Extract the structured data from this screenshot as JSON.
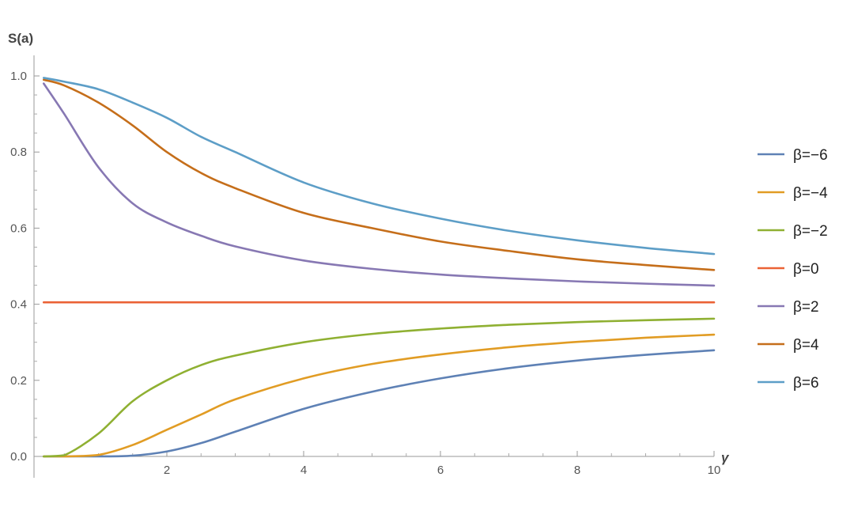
{
  "chart_data": {
    "type": "line",
    "title": "",
    "xlabel": "γ",
    "ylabel": "S(a)",
    "xlim": [
      0,
      10
    ],
    "ylim": [
      0,
      1
    ],
    "xticks": [
      2,
      4,
      6,
      8,
      10
    ],
    "xtick_labels": [
      "2",
      "4",
      "6",
      "8",
      "10"
    ],
    "yticks": [
      0.0,
      0.2,
      0.4,
      0.6,
      0.8,
      1.0
    ],
    "ytick_labels": [
      "0.0",
      "0.2",
      "0.4",
      "0.6",
      "0.8",
      "1.0"
    ],
    "grid": false,
    "legend_position": "right",
    "x": [
      0.2,
      0.5,
      1,
      1.5,
      2,
      2.5,
      3,
      4,
      5,
      6,
      7,
      8,
      9,
      10
    ],
    "series": [
      {
        "name": "β=−6",
        "color": "#5e81b5",
        "values": [
          0.0,
          0.0,
          0.0,
          0.002,
          0.013,
          0.035,
          0.065,
          0.125,
          0.17,
          0.205,
          0.232,
          0.252,
          0.267,
          0.279
        ]
      },
      {
        "name": "β=−4",
        "color": "#e19c24",
        "values": [
          0.0,
          0.0,
          0.004,
          0.03,
          0.07,
          0.11,
          0.15,
          0.205,
          0.243,
          0.268,
          0.287,
          0.301,
          0.312,
          0.32
        ]
      },
      {
        "name": "β=−2",
        "color": "#8fb032",
        "values": [
          0.0,
          0.003,
          0.06,
          0.145,
          0.2,
          0.24,
          0.265,
          0.3,
          0.322,
          0.336,
          0.346,
          0.353,
          0.358,
          0.362
        ]
      },
      {
        "name": "β=0",
        "color": "#eb6235",
        "values": [
          0.405,
          0.405,
          0.405,
          0.405,
          0.405,
          0.405,
          0.405,
          0.405,
          0.405,
          0.405,
          0.405,
          0.405,
          0.405,
          0.405
        ]
      },
      {
        "name": "β=2",
        "color": "#8778b3",
        "values": [
          0.98,
          0.9,
          0.76,
          0.665,
          0.615,
          0.58,
          0.552,
          0.515,
          0.493,
          0.478,
          0.468,
          0.46,
          0.454,
          0.449
        ]
      },
      {
        "name": "β=4",
        "color": "#c56e1a",
        "values": [
          0.99,
          0.975,
          0.93,
          0.87,
          0.8,
          0.745,
          0.705,
          0.64,
          0.6,
          0.565,
          0.54,
          0.518,
          0.503,
          0.49
        ]
      },
      {
        "name": "β=6",
        "color": "#5d9ec7",
        "values": [
          0.995,
          0.985,
          0.965,
          0.93,
          0.89,
          0.84,
          0.8,
          0.72,
          0.665,
          0.625,
          0.593,
          0.568,
          0.548,
          0.532
        ]
      }
    ]
  }
}
